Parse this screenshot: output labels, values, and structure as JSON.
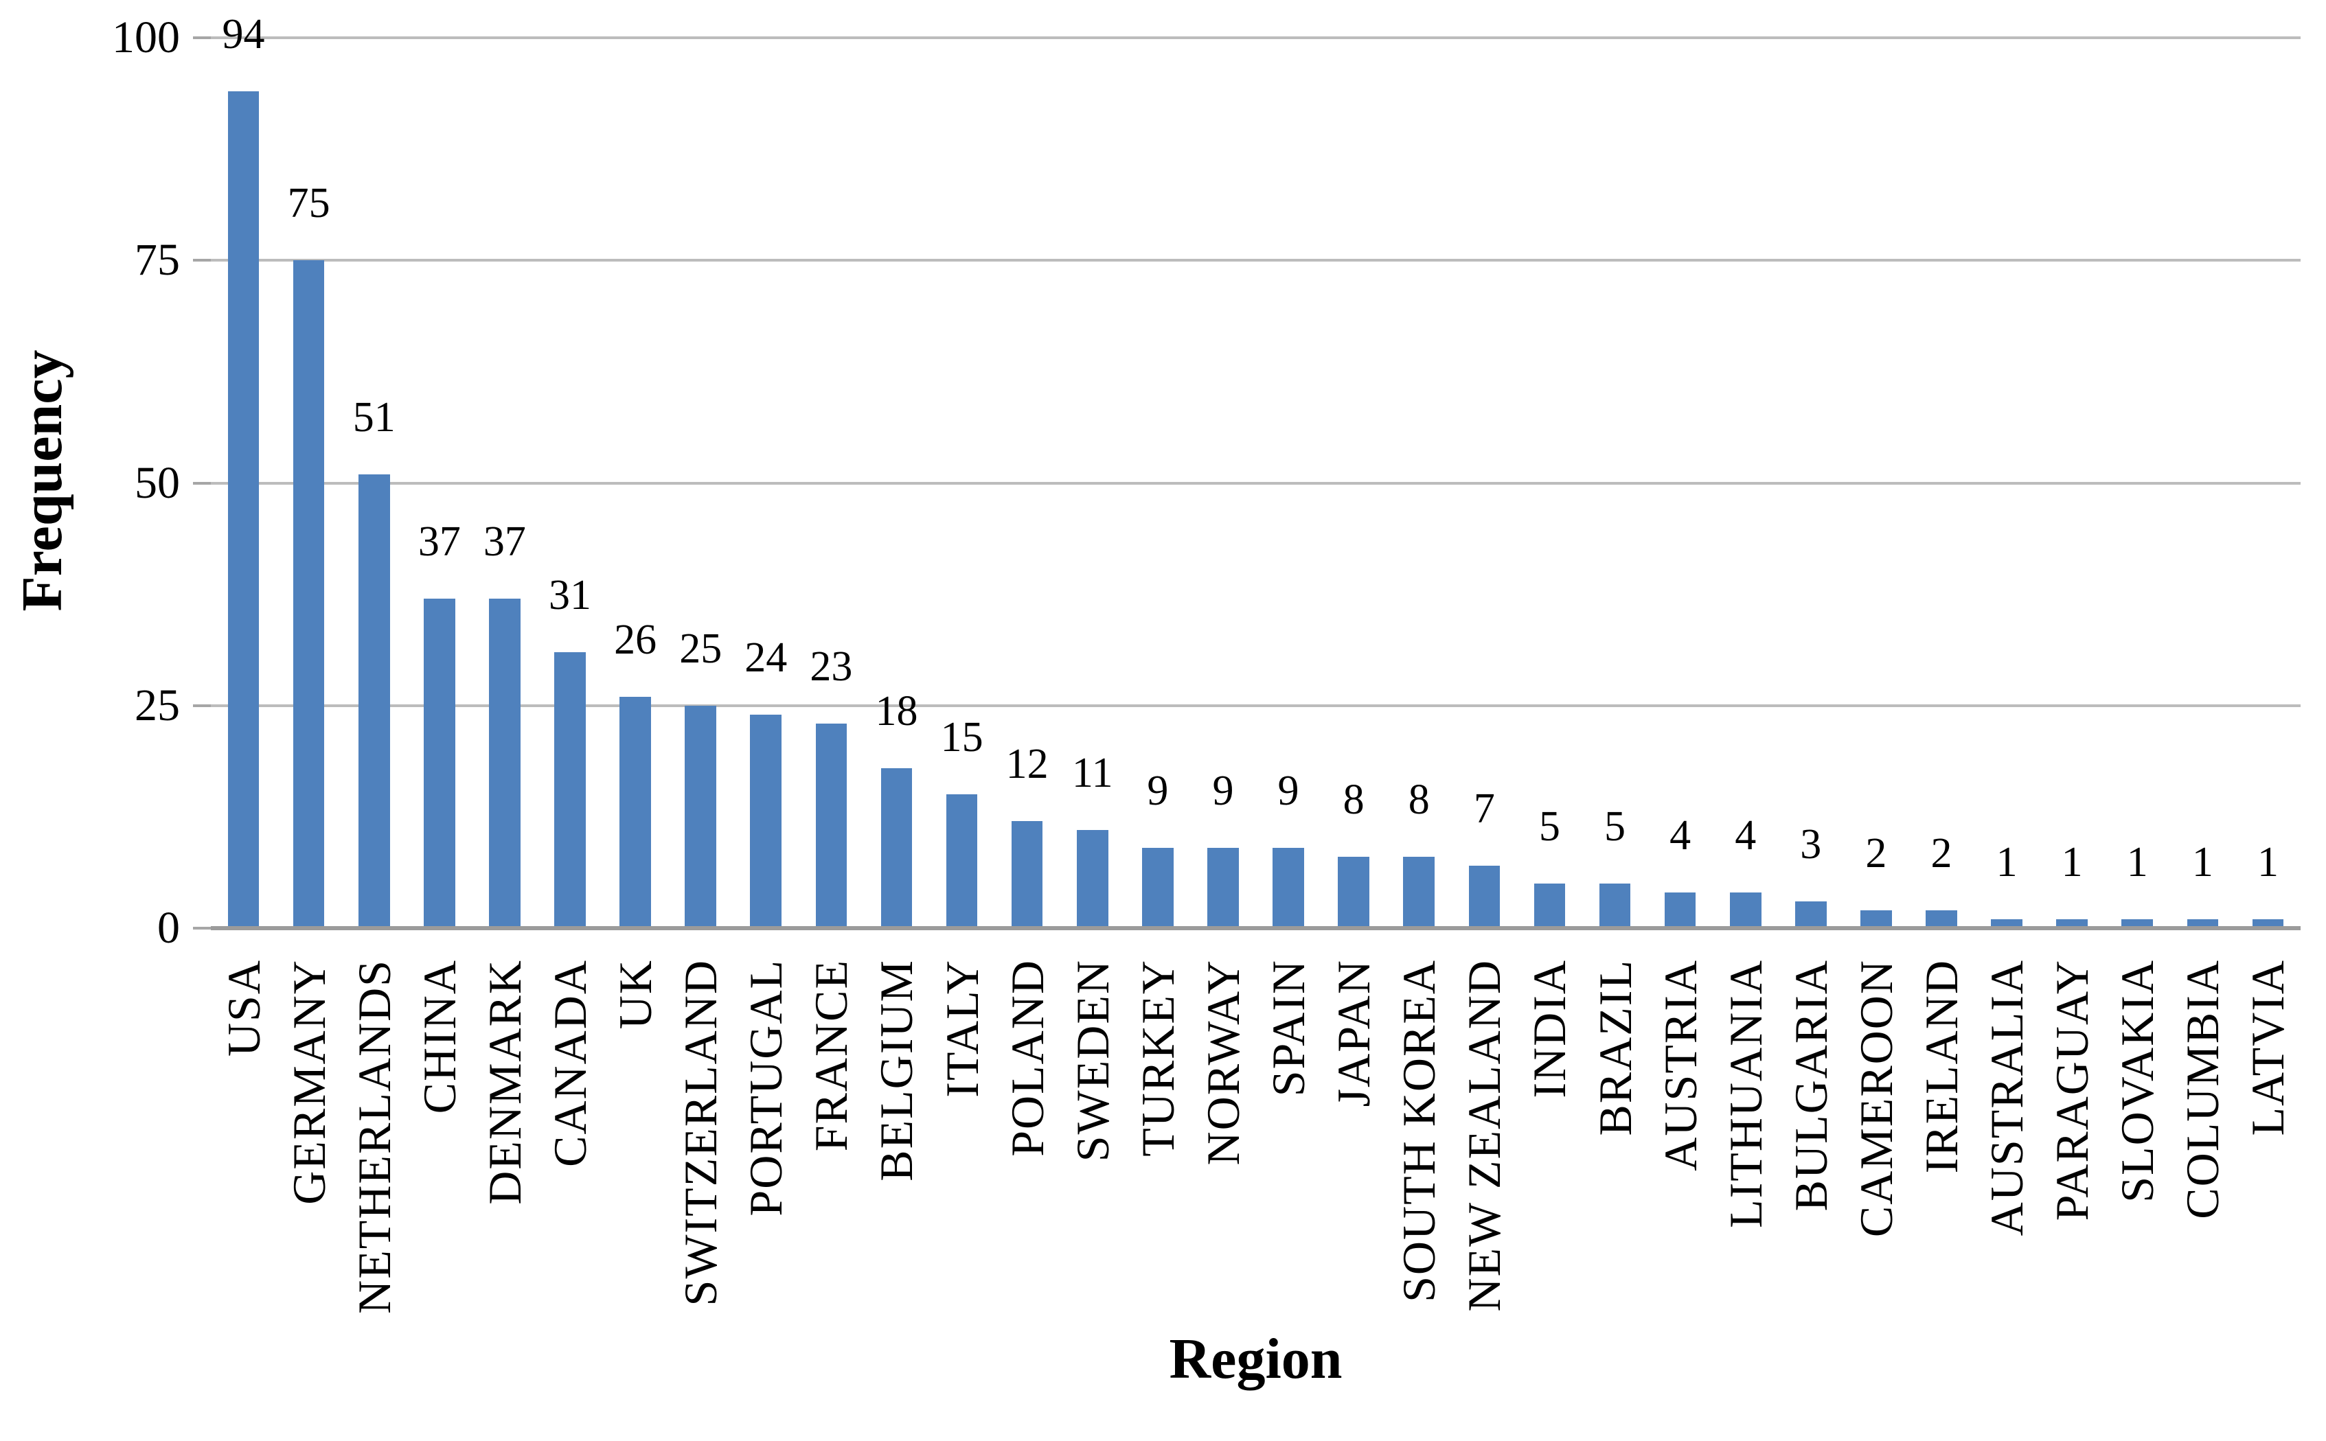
{
  "chart_data": {
    "type": "bar",
    "title": "",
    "xlabel": "Region",
    "ylabel": "Frequency",
    "categories": [
      "USA",
      "GERMANY",
      "NETHERLANDS",
      "CHINA",
      "DENMARK",
      "CANADA",
      "UK",
      "SWITZERLAND",
      "PORTUGAL",
      "FRANCE",
      "BELGIUM",
      "ITALY",
      "POLAND",
      "SWEDEN",
      "TURKEY",
      "NORWAY",
      "SPAIN",
      "JAPAN",
      "SOUTH KOREA",
      "NEW ZEALAND",
      "INDIA",
      "BRAZIL",
      "AUSTRIA",
      "LITHUANIA",
      "BULGARIA",
      "CAMEROON",
      "IRELAND",
      "AUSTRALIA",
      "PARAGUAY",
      "SLOVAKIA",
      "COLUMBIA",
      "LATVIA"
    ],
    "values": [
      94,
      75,
      51,
      37,
      37,
      31,
      26,
      25,
      24,
      23,
      18,
      15,
      12,
      11,
      9,
      9,
      9,
      8,
      8,
      7,
      5,
      5,
      4,
      4,
      3,
      2,
      2,
      1,
      1,
      1,
      1,
      1
    ],
    "ylim": [
      0,
      100
    ],
    "yticks": [
      0,
      25,
      50,
      75,
      100
    ],
    "grid": true,
    "legend": false,
    "data_labels_visible": true,
    "colors": {
      "bar": "#4F81BD",
      "gridline": "#BCBCBC",
      "baseline": "#9B9B9B",
      "tick_mark": "#A6A6A6",
      "text": "#000000"
    }
  }
}
